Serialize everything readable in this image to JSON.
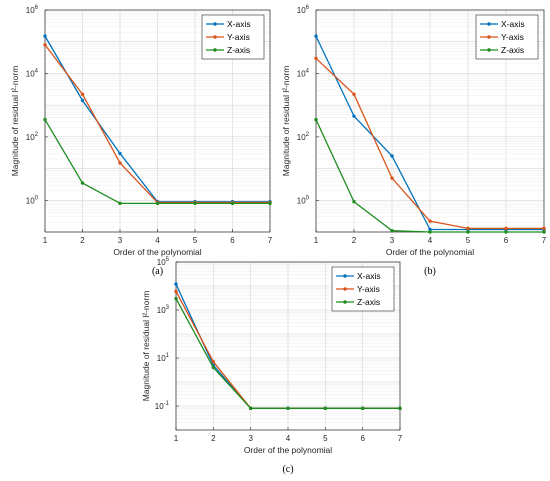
{
  "chart_data": [
    {
      "type": "line",
      "panel_label": "(a)",
      "xlabel": "Order of the polynomial",
      "ylabel": "Magnitude of residual l²-norm",
      "yscale": "log",
      "x": [
        1,
        2,
        3,
        4,
        5,
        6,
        7
      ],
      "xlim": [
        1,
        7
      ],
      "ylim": [
        0.1,
        1000000
      ],
      "yticks": [
        1,
        100,
        10000,
        1000000
      ],
      "ytick_labels": [
        [
          "10",
          "0"
        ],
        [
          "10",
          "2"
        ],
        [
          "10",
          "4"
        ],
        [
          "10",
          "6"
        ]
      ],
      "xtick_labels": [
        "1",
        "2",
        "3",
        "4",
        "5",
        "6",
        "7"
      ],
      "grid": true,
      "legend_position": "top-right",
      "series": [
        {
          "name": "X-axis",
          "color": "#0072BD",
          "values": [
            150000,
            1400,
            30,
            0.9,
            0.9,
            0.9,
            0.9
          ]
        },
        {
          "name": "Y-axis",
          "color": "#D95319",
          "values": [
            80000,
            2200,
            15,
            0.85,
            0.85,
            0.85,
            0.85
          ]
        },
        {
          "name": "Z-axis",
          "color": "#1E8C1E",
          "values": [
            350,
            3.5,
            0.8,
            0.8,
            0.8,
            0.8,
            0.8
          ]
        }
      ]
    },
    {
      "type": "line",
      "panel_label": "(b)",
      "xlabel": "Order of the polynomial",
      "ylabel": "Magnitude of residual l²-norm",
      "yscale": "log",
      "x": [
        1,
        2,
        3,
        4,
        5,
        6,
        7
      ],
      "xlim": [
        1,
        7
      ],
      "ylim": [
        0.1,
        1000000
      ],
      "yticks": [
        1,
        100,
        10000,
        1000000
      ],
      "ytick_labels": [
        [
          "10",
          "0"
        ],
        [
          "10",
          "2"
        ],
        [
          "10",
          "4"
        ],
        [
          "10",
          "6"
        ]
      ],
      "xtick_labels": [
        "1",
        "2",
        "3",
        "4",
        "5",
        "6",
        "7"
      ],
      "grid": true,
      "legend_position": "top-right",
      "series": [
        {
          "name": "X-axis",
          "color": "#0072BD",
          "values": [
            150000,
            450,
            25,
            0.12,
            0.12,
            0.12,
            0.12
          ]
        },
        {
          "name": "Y-axis",
          "color": "#D95319",
          "values": [
            30000,
            2200,
            5,
            0.22,
            0.13,
            0.13,
            0.13
          ]
        },
        {
          "name": "Z-axis",
          "color": "#1E8C1E",
          "values": [
            350,
            0.9,
            0.11,
            0.1,
            0.1,
            0.1,
            0.1
          ]
        }
      ]
    },
    {
      "type": "line",
      "panel_label": "(c)",
      "xlabel": "Order of the polynomial",
      "ylabel": "Magnitude of residual l²-norm",
      "yscale": "log",
      "x": [
        1,
        2,
        3,
        4,
        5,
        6,
        7
      ],
      "xlim": [
        1,
        7
      ],
      "ylim": [
        0.01,
        100000
      ],
      "yticks": [
        0.1,
        10,
        1000,
        100000
      ],
      "ytick_labels": [
        [
          "10",
          "-1"
        ],
        [
          "10",
          "1"
        ],
        [
          "10",
          "3"
        ],
        [
          "10",
          "5"
        ]
      ],
      "xtick_labels": [
        "1",
        "2",
        "3",
        "4",
        "5",
        "6",
        "7"
      ],
      "grid": true,
      "legend_position": "top-right",
      "series": [
        {
          "name": "X-axis",
          "color": "#0072BD",
          "values": [
            12000,
            5,
            0.08,
            0.08,
            0.08,
            0.08,
            0.08
          ]
        },
        {
          "name": "Y-axis",
          "color": "#D95319",
          "values": [
            6000,
            7,
            0.08,
            0.08,
            0.08,
            0.08,
            0.08
          ]
        },
        {
          "name": "Z-axis",
          "color": "#1E8C1E",
          "values": [
            3000,
            4,
            0.08,
            0.08,
            0.08,
            0.08,
            0.08
          ]
        }
      ]
    }
  ]
}
